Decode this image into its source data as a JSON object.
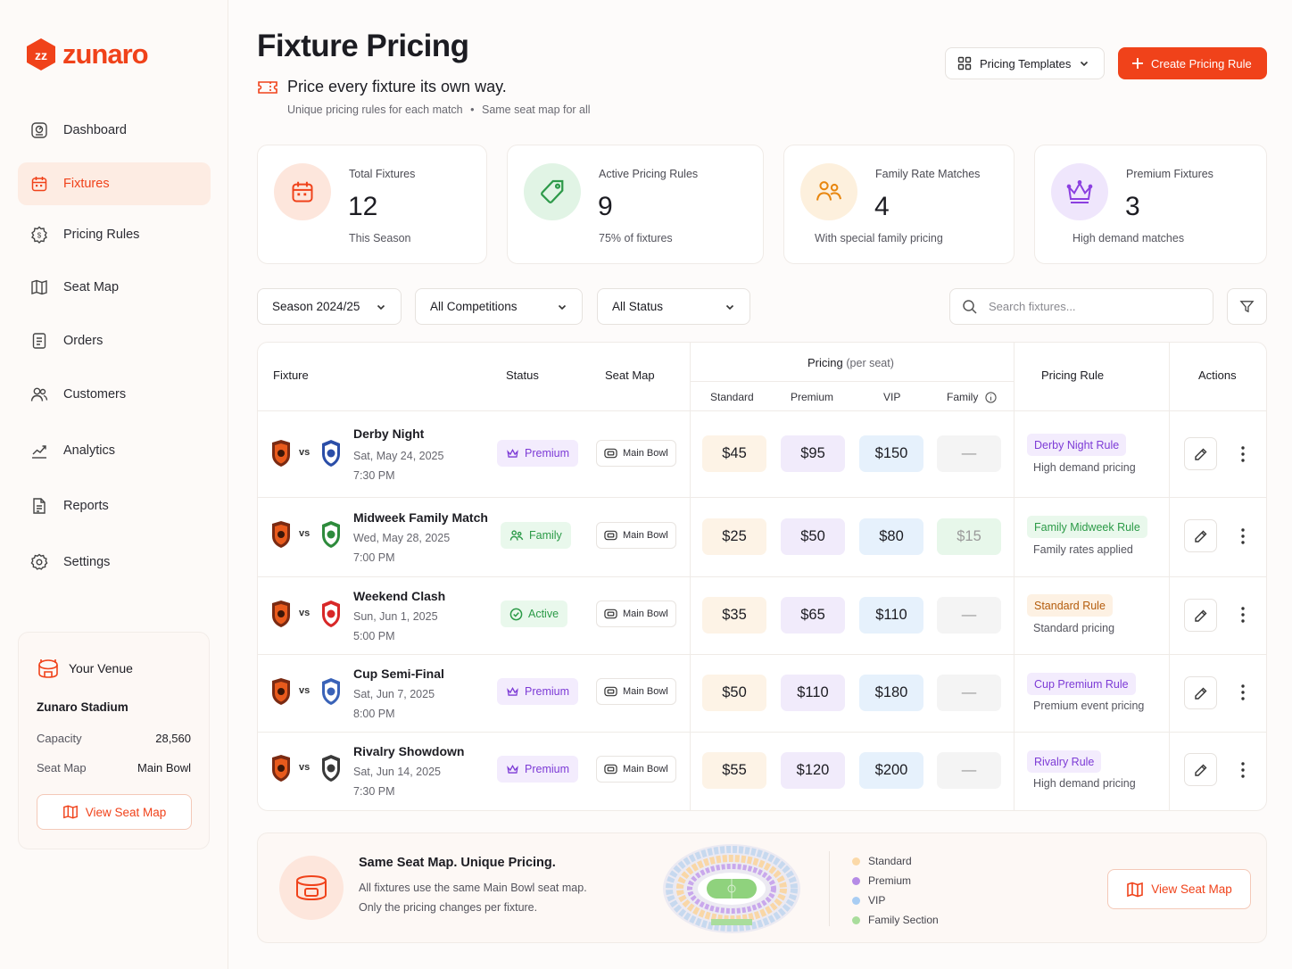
{
  "brand": {
    "name": "zunaro",
    "accent": "#f0421a"
  },
  "sidebar": {
    "items": [
      {
        "label": "Dashboard",
        "icon": "dashboard-icon"
      },
      {
        "label": "Fixtures",
        "icon": "calendar-icon",
        "active": true
      },
      {
        "label": "Pricing Rules",
        "icon": "gear-tag-icon"
      },
      {
        "label": "Seat Map",
        "icon": "map-icon"
      },
      {
        "label": "Orders",
        "icon": "document-icon"
      },
      {
        "label": "Customers",
        "icon": "users-icon"
      },
      {
        "label": "Analytics",
        "icon": "chart-icon"
      },
      {
        "label": "Reports",
        "icon": "report-icon"
      },
      {
        "label": "Settings",
        "icon": "settings-icon"
      }
    ],
    "venue": {
      "heading": "Your Venue",
      "name": "Zunaro Stadium",
      "capacity_label": "Capacity",
      "capacity_value": "28,560",
      "seatmap_label": "Seat Map",
      "seatmap_value": "Main Bowl",
      "button": "View Seat Map"
    }
  },
  "header": {
    "title": "Fixture Pricing",
    "subtitle": "Price every fixture its own way.",
    "note_1": "Unique pricing rules for each match",
    "note_sep": "•",
    "note_2": "Same seat map for all",
    "templates_button": "Pricing Templates",
    "create_button": "Create Pricing Rule"
  },
  "stats": [
    {
      "label": "Total Fixtures",
      "value": "12",
      "note": "This Season",
      "icon": "calendar-icon",
      "color": "#f0421a",
      "bg": "#fde6dc"
    },
    {
      "label": "Active Pricing Rules",
      "value": "9",
      "note": "75% of fixtures",
      "icon": "tag-icon",
      "color": "#2e9a4a",
      "bg": "#e1f4e5"
    },
    {
      "label": "Family Rate Matches",
      "value": "4",
      "note": "With special family pricing",
      "icon": "family-icon",
      "color": "#e8860e",
      "bg": "#fdf0dd"
    },
    {
      "label": "Premium Fixtures",
      "value": "3",
      "note": "High demand matches",
      "icon": "crown-icon",
      "color": "#8b3fe0",
      "bg": "#efe6fc"
    }
  ],
  "filters": {
    "season": "Season 2024/25",
    "competition": "All Competitions",
    "status": "All Status",
    "search_placeholder": "Search fixtures..."
  },
  "table": {
    "headers": {
      "fixture": "Fixture",
      "status": "Status",
      "seatmap": "Seat Map",
      "pricing": "Pricing",
      "pricing_sub": "(per seat)",
      "standard": "Standard",
      "premium": "Premium",
      "vip": "VIP",
      "family": "Family",
      "rule": "Pricing Rule",
      "actions": "Actions"
    },
    "vs": "vs",
    "rows": [
      {
        "name": "Derby Night",
        "date": "Sat, May 24, 2025",
        "time": "7:30 PM",
        "status": "Premium",
        "status_type": "premium",
        "seatmap": "Main Bowl",
        "standard": "$45",
        "premium": "$95",
        "vip": "$150",
        "family": "—",
        "rule": "Derby Night Rule",
        "rule_type": "premium",
        "rule_note": "High demand pricing",
        "opp_color": "#2b4ea8"
      },
      {
        "name": "Midweek Family Match",
        "date": "Wed, May 28, 2025",
        "time": "7:00 PM",
        "status": "Family",
        "status_type": "family",
        "seatmap": "Main Bowl",
        "standard": "$25",
        "premium": "$50",
        "vip": "$80",
        "family": "$15",
        "rule": "Family Midweek Rule",
        "rule_type": "family",
        "rule_note": "Family rates applied",
        "opp_color": "#2e8b3c"
      },
      {
        "name": "Weekend Clash",
        "date": "Sun, Jun 1, 2025",
        "time": "5:00 PM",
        "status": "Active",
        "status_type": "active",
        "seatmap": "Main Bowl",
        "standard": "$35",
        "premium": "$65",
        "vip": "$110",
        "family": "—",
        "rule": "Standard Rule",
        "rule_type": "standard",
        "rule_note": "Standard pricing",
        "opp_color": "#d82828"
      },
      {
        "name": "Cup Semi-Final",
        "date": "Sat, Jun 7, 2025",
        "time": "8:00 PM",
        "status": "Premium",
        "status_type": "premium",
        "seatmap": "Main Bowl",
        "standard": "$50",
        "premium": "$110",
        "vip": "$180",
        "family": "—",
        "rule": "Cup Premium Rule",
        "rule_type": "premium",
        "rule_note": "Premium event pricing",
        "opp_color": "#3a63b8"
      },
      {
        "name": "Rivalry Showdown",
        "date": "Sat, Jun 14, 2025",
        "time": "7:30 PM",
        "status": "Premium",
        "status_type": "premium",
        "seatmap": "Main Bowl",
        "standard": "$55",
        "premium": "$120",
        "vip": "$200",
        "family": "—",
        "rule": "Rivalry Rule",
        "rule_type": "premium",
        "rule_note": "High demand pricing",
        "opp_color": "#3a3a3a"
      }
    ]
  },
  "banner": {
    "title": "Same Seat Map. Unique Pricing.",
    "line1": "All fixtures use the same Main Bowl seat map.",
    "line2": "Only the pricing changes per fixture.",
    "legend": [
      {
        "label": "Standard",
        "color": "#fbd9a8"
      },
      {
        "label": "Premium",
        "color": "#b58be6"
      },
      {
        "label": "VIP",
        "color": "#a8cdf3"
      },
      {
        "label": "Family Section",
        "color": "#a9dd9c"
      }
    ],
    "button": "View Seat Map"
  }
}
